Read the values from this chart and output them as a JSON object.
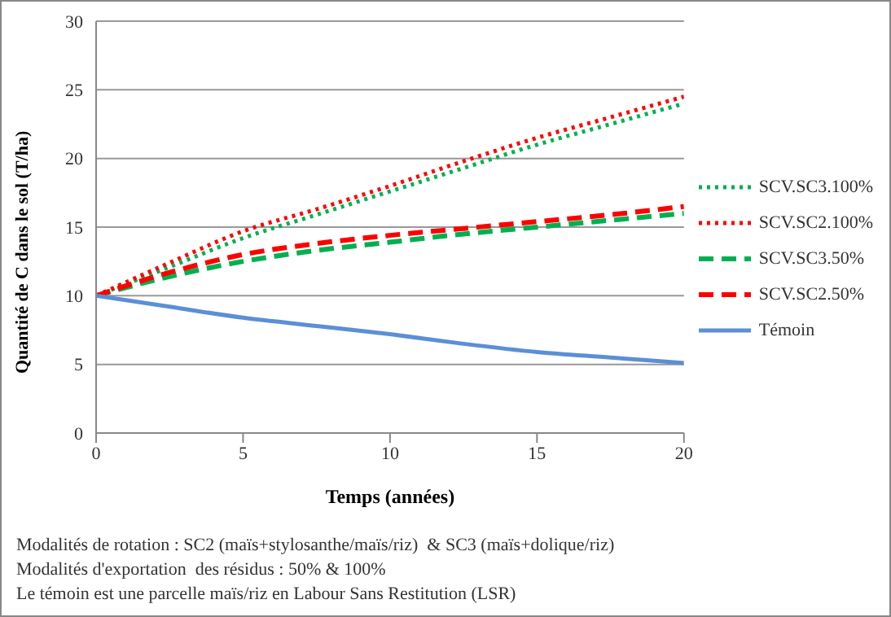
{
  "chart_data": {
    "type": "line",
    "xlabel": "Temps (années)",
    "ylabel": "Quantité de C dans le sol (T/ha)",
    "x": [
      0,
      2.5,
      5,
      7.5,
      10,
      12.5,
      15,
      17.5,
      20
    ],
    "series": [
      {
        "name": "SCV.SC3.100%",
        "color": "#00b050",
        "line_style": "dotted",
        "values": [
          10,
          12.1,
          14.2,
          15.9,
          17.6,
          19.3,
          21,
          22.5,
          24
        ]
      },
      {
        "name": "SCV.SC2.100%",
        "color": "#ff0000",
        "line_style": "dotted",
        "values": [
          10,
          12.4,
          14.7,
          16.3,
          18,
          19.8,
          21.5,
          23,
          24.5
        ]
      },
      {
        "name": "SCV.SC3.50%",
        "color": "#00b050",
        "line_style": "dashed",
        "values": [
          10,
          11.4,
          12.5,
          13.3,
          13.9,
          14.5,
          15,
          15.5,
          16
        ]
      },
      {
        "name": "SCV.SC2.50%",
        "color": "#ff0000",
        "line_style": "dashed",
        "values": [
          10,
          11.7,
          13,
          13.8,
          14.4,
          14.9,
          15.4,
          15.9,
          16.5
        ]
      },
      {
        "name": "Témoin",
        "color": "#5b8fd6",
        "line_style": "solid",
        "values": [
          10,
          9.2,
          8.4,
          7.8,
          7.2,
          6.5,
          5.9,
          5.5,
          5.1
        ]
      }
    ],
    "xlim": [
      0,
      20
    ],
    "xticks": [
      0,
      5,
      10,
      15,
      20
    ],
    "ylim": [
      0,
      30
    ],
    "yticks": [
      0,
      5,
      10,
      15,
      20,
      25,
      30
    ],
    "grid": "y",
    "legend": "right",
    "marker": "none",
    "annotations": [
      "Modalités de rotation : SC2 (maïs+stylosanthe/maïs/riz)  & SC3 (maïs+dolique/riz)",
      "Modalités d'exportation  des résidus : 50% & 100%",
      "Le témoin est une parcelle maïs/riz en Labour Sans Restitution (LSR)"
    ]
  }
}
